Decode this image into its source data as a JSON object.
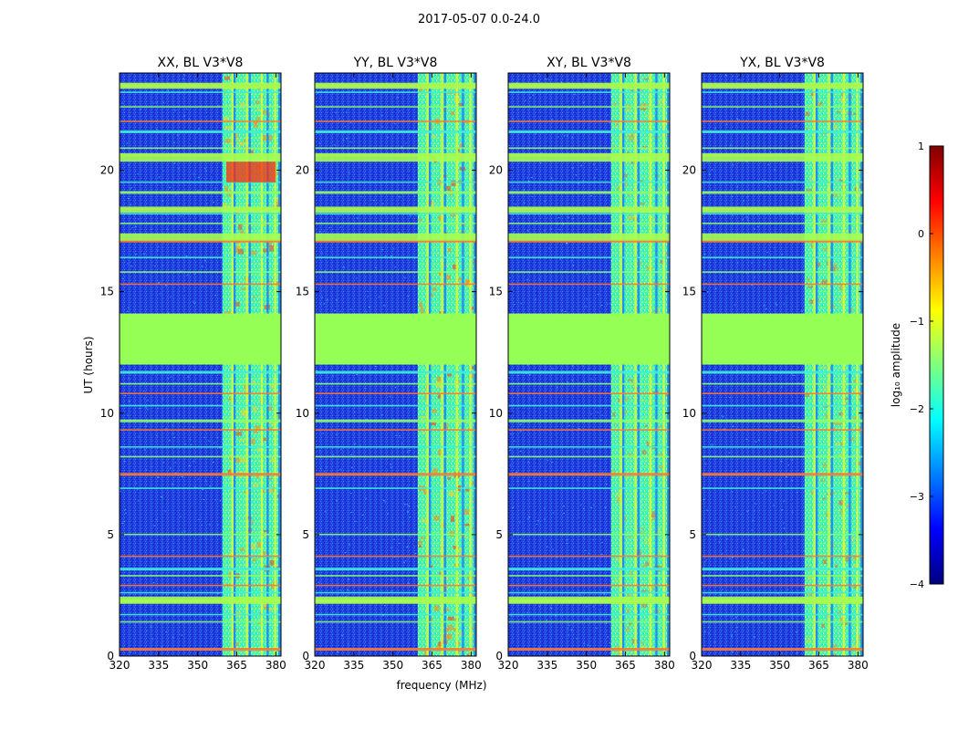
{
  "suptitle": "2017-05-07 0.0-24.0",
  "chart_data": {
    "type": "heatmap",
    "colormap": "jet",
    "panels": [
      {
        "title": "XX, BL V3*V8"
      },
      {
        "title": "YY, BL V3*V8"
      },
      {
        "title": "XY, BL V3*V8"
      },
      {
        "title": "YX, BL V3*V8"
      }
    ],
    "xlabel": "frequency (MHz)",
    "ylabel": "UT (hours)",
    "xlim": [
      320,
      382
    ],
    "ylim": [
      0,
      24
    ],
    "xticks": [
      320,
      335,
      350,
      365,
      380
    ],
    "yticks": [
      0,
      5,
      10,
      15,
      20
    ],
    "colorbar": {
      "label": "log₁₀ amplitude",
      "vmin": -4,
      "vmax": 1,
      "ticks": [
        1,
        0,
        -1,
        -2,
        -3,
        -4
      ],
      "tick_labels": [
        "1",
        "0",
        "−1",
        "−2",
        "−3",
        "−4"
      ]
    },
    "features": {
      "flagged_time_range_hours": [
        12.0,
        14.1
      ],
      "rfi_band_MHz": [
        359.5,
        382
      ],
      "rfi_channels_MHz": [
        363.3,
        364.2,
        368.9,
        370,
        374.6,
        376.9,
        379.8,
        381.4
      ],
      "noisy_time_rows_hours": [
        0.3,
        1.4,
        1.7,
        2.2,
        2.3,
        2.6,
        2.9,
        3.3,
        3.6,
        4.1,
        5.0,
        6.9,
        7.5,
        8.2,
        8.6,
        9.3,
        9.7,
        10.3,
        10.8,
        11.2,
        11.7,
        15.3,
        15.8,
        16.4,
        17.1,
        17.8,
        18.2,
        18.4,
        19.1,
        19.5,
        20.6,
        20.9,
        21.6,
        22.0,
        22.6,
        23.2,
        23.5
      ]
    }
  }
}
